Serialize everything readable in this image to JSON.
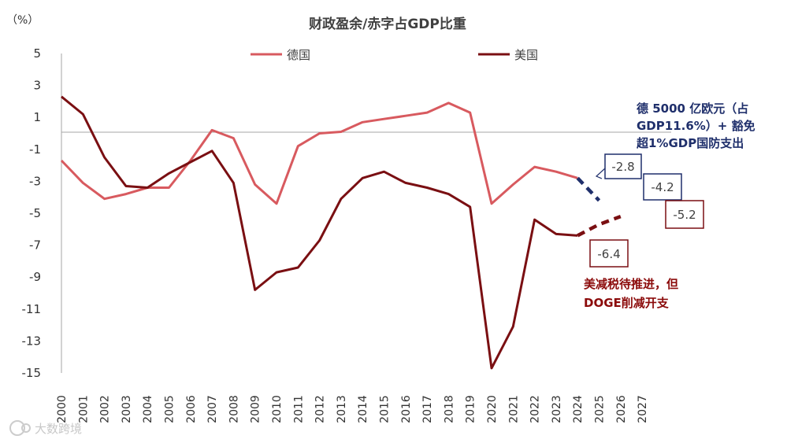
{
  "chart_data": {
    "type": "line",
    "title": "财政盈余/赤字占GDP比重",
    "unit_label": "（%）",
    "x": [
      "2000",
      "2001",
      "2002",
      "2003",
      "2004",
      "2005",
      "2006",
      "2007",
      "2008",
      "2009",
      "2010",
      "2011",
      "2012",
      "2013",
      "2014",
      "2015",
      "2016",
      "2017",
      "2018",
      "2019",
      "2020",
      "2021",
      "2022",
      "2023",
      "2024",
      "2025",
      "2026",
      "2027"
    ],
    "yticks": [
      5,
      3,
      1,
      -1,
      -3,
      -5,
      -7,
      -9,
      -11,
      -13,
      -15
    ],
    "ylim": [
      -15,
      5
    ],
    "series": [
      {
        "name": "德国",
        "color": "#d85a5f",
        "values": [
          -1.7,
          -3.1,
          -4.1,
          -3.8,
          -3.4,
          -3.4,
          -1.7,
          0.2,
          -0.3,
          -3.2,
          -4.4,
          -0.8,
          0.0,
          0.1,
          0.7,
          0.9,
          1.1,
          1.3,
          1.9,
          1.3,
          -4.4,
          -3.2,
          -2.1,
          -2.4,
          -2.8,
          null,
          null,
          null
        ],
        "projection": {
          "x": [
            "2024",
            "2025"
          ],
          "values": [
            -2.8,
            -4.2
          ],
          "color": "#1f2f6b"
        }
      },
      {
        "name": "美国",
        "color": "#7a0f12",
        "values": [
          2.3,
          1.2,
          -1.5,
          -3.3,
          -3.4,
          -2.5,
          -1.8,
          -1.1,
          -3.1,
          -9.8,
          -8.7,
          -8.4,
          -6.7,
          -4.1,
          -2.8,
          -2.4,
          -3.1,
          -3.4,
          -3.8,
          -4.6,
          -14.7,
          -12.1,
          -5.4,
          -6.3,
          -6.4,
          null,
          null,
          null
        ],
        "projection": {
          "x": [
            "2024",
            "2025",
            "2026"
          ],
          "values": [
            -6.4,
            -5.7,
            -5.2
          ],
          "color": "#7a0f12"
        }
      }
    ],
    "value_labels": [
      {
        "text": "-2.8",
        "border": "#1f2f6b"
      },
      {
        "text": "-4.2",
        "border": "#1f2f6b"
      },
      {
        "text": "-5.2",
        "border": "#7a0f12"
      },
      {
        "text": "-6.4",
        "border": "#7a0f12"
      }
    ],
    "annotations": {
      "germany": [
        "德 5000 亿欧元（占",
        "GDP11.6%）+ 豁免",
        "超1%GDP国防支出"
      ],
      "us": [
        "美减税待推进，但",
        "DOGE削减开支"
      ]
    }
  },
  "watermark": "大数跨境"
}
